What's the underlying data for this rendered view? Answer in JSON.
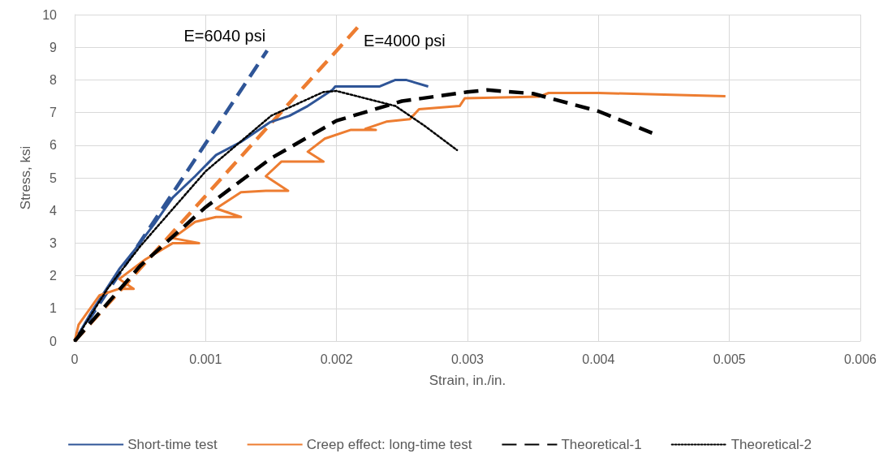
{
  "chart_data": {
    "type": "line",
    "xlabel": "Strain, in./in.",
    "ylabel": "Stress, ksi",
    "xlim": [
      0,
      0.006
    ],
    "xticks": [
      0,
      0.001,
      0.002,
      0.003,
      0.004,
      0.005,
      0.006
    ],
    "ylim": [
      0,
      10
    ],
    "yticks": [
      0,
      1,
      2,
      3,
      4,
      5,
      6,
      7,
      8,
      9,
      10
    ],
    "grid": true,
    "legend": "bottom",
    "marker": "none",
    "annotations": [
      "E=6040 psi",
      "E=4000 psi"
    ],
    "series": [
      {
        "name": "Short-time test",
        "color": "#2f5597",
        "line_style": "solid",
        "x": [
          0,
          0.00013,
          0.00034,
          0.00046,
          0.00061,
          0.00075,
          0.00092,
          0.00108,
          0.00127,
          0.00149,
          0.00164,
          0.00178,
          0.00197,
          0.00199,
          0.002,
          0.00233,
          0.00245,
          0.00253,
          0.0027
        ],
        "values": [
          0,
          0.9,
          2.2,
          2.8,
          3.6,
          4.4,
          5.05,
          5.7,
          6.1,
          6.7,
          6.9,
          7.2,
          7.7,
          7.8,
          7.8,
          7.8,
          8.0,
          8.0,
          7.8
        ]
      },
      {
        "name": "Creep effect: long-time test",
        "color": "#ed7d31",
        "line_style": "solid",
        "x": [
          0,
          3e-05,
          0.00019,
          0.00034,
          0.00045,
          0.00034,
          0.00054,
          0.00075,
          0.00095,
          0.00075,
          0.00092,
          0.00108,
          0.00127,
          0.00108,
          0.00127,
          0.00146,
          0.00163,
          0.00146,
          0.00158,
          0.00178,
          0.0019,
          0.00178,
          0.00191,
          0.00211,
          0.0023,
          0.00222,
          0.00238,
          0.00256,
          0.00263,
          0.00294,
          0.00298,
          0.00355,
          0.00362,
          0.004,
          0.00497
        ],
        "values": [
          0,
          0.5,
          1.4,
          1.6,
          1.6,
          1.9,
          2.5,
          3.0,
          3.0,
          3.15,
          3.65,
          3.8,
          3.8,
          4.06,
          4.56,
          4.6,
          4.6,
          5.05,
          5.5,
          5.5,
          5.5,
          5.8,
          6.2,
          6.47,
          6.47,
          6.5,
          6.72,
          6.8,
          7.1,
          7.2,
          7.44,
          7.49,
          7.6,
          7.6,
          7.5
        ]
      },
      {
        "name": "Theoretical-1",
        "color": "#000000",
        "line_style": "dashed",
        "x": [
          0,
          0.0005,
          0.001,
          0.0015,
          0.002,
          0.0025,
          0.003,
          0.00315,
          0.0035,
          0.004,
          0.00441
        ],
        "values": [
          0,
          2.3,
          4.1,
          5.6,
          6.75,
          7.35,
          7.63,
          7.69,
          7.58,
          7.04,
          6.37
        ]
      },
      {
        "name": "Theoretical-2",
        "color": "#000000",
        "line_style": "dotted",
        "x": [
          0,
          0.00025,
          0.0005,
          0.001,
          0.0015,
          0.0019,
          0.002,
          0.00245,
          0.00267,
          0.00292
        ],
        "values": [
          0,
          1.6,
          2.9,
          5.2,
          6.9,
          7.63,
          7.66,
          7.2,
          6.6,
          5.85
        ]
      },
      {
        "color": "#2f5597",
        "line_style": "dashed",
        "x": [
          0,
          0.00147
        ],
        "values": [
          0,
          8.9
        ]
      },
      {
        "color": "#ed7d31",
        "line_style": "dashed",
        "x": [
          0,
          0.00217
        ],
        "values": [
          0,
          9.65
        ]
      }
    ]
  }
}
